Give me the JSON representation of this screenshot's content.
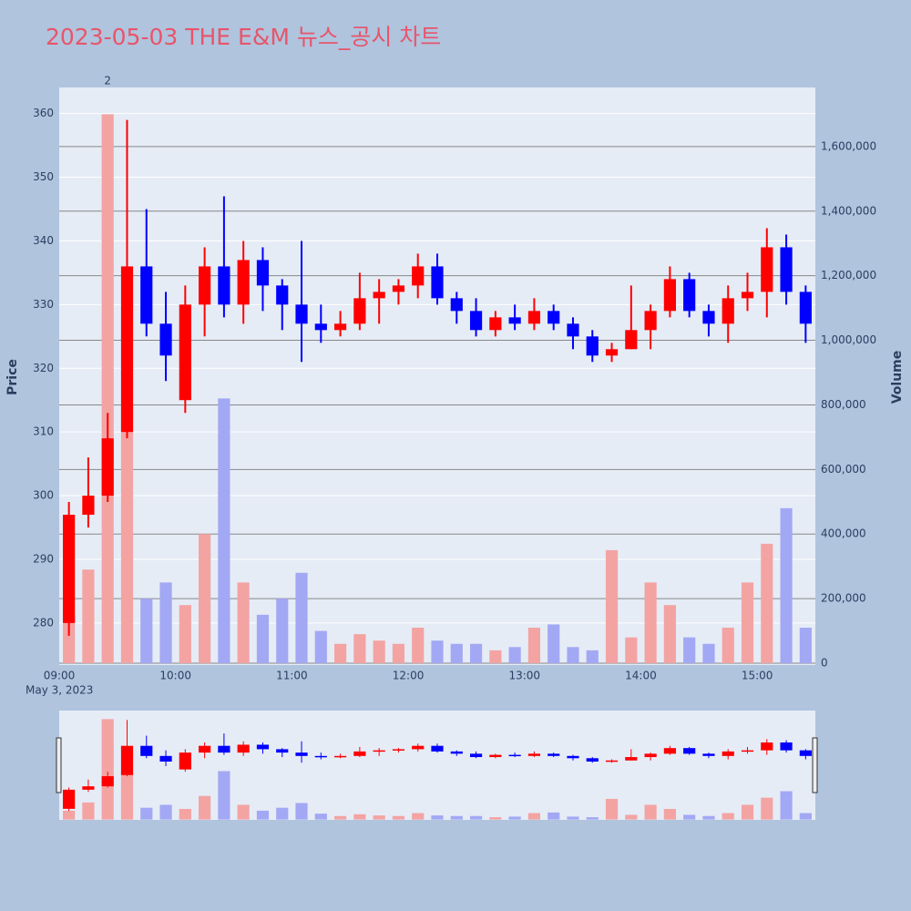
{
  "chart_data": {
    "type": "candlestick",
    "title": "2023-05-03 THE E&M 뉴스_공시 차트",
    "y_label": "Price",
    "y2_label": "Volume",
    "x_date_label": "May 3, 2023",
    "increasing_color": "#ff0000",
    "decreasing_color": "#0000ff",
    "volume_increasing_color": "#f4a3a3",
    "volume_decreasing_color": "#a3a8f4",
    "x": [
      "09:00",
      "09:10",
      "09:20",
      "09:30",
      "09:40",
      "09:50",
      "10:00",
      "10:10",
      "10:20",
      "10:30",
      "10:40",
      "10:50",
      "11:00",
      "11:10",
      "11:20",
      "11:30",
      "11:40",
      "11:50",
      "12:00",
      "12:10",
      "12:20",
      "12:30",
      "12:40",
      "12:50",
      "13:00",
      "13:10",
      "13:20",
      "13:30",
      "13:40",
      "13:50",
      "14:00",
      "14:10",
      "14:20",
      "14:30",
      "14:40",
      "14:50",
      "15:00",
      "15:10",
      "15:20"
    ],
    "open": [
      280,
      297,
      300,
      310,
      336,
      327,
      315,
      330,
      336,
      330,
      337,
      333,
      330,
      327,
      326,
      327,
      331,
      332,
      333,
      336,
      331,
      329,
      326,
      328,
      327,
      329,
      327,
      325,
      322,
      323,
      326,
      329,
      334,
      329,
      327,
      331,
      332,
      339,
      332
    ],
    "high": [
      299,
      306,
      313,
      359,
      345,
      332,
      333,
      339,
      347,
      340,
      339,
      334,
      340,
      330,
      329,
      335,
      334,
      334,
      338,
      338,
      332,
      331,
      329,
      330,
      331,
      330,
      328,
      326,
      324,
      333,
      330,
      336,
      335,
      330,
      333,
      335,
      342,
      341,
      333
    ],
    "low": [
      278,
      295,
      299,
      309,
      325,
      318,
      313,
      325,
      328,
      327,
      329,
      326,
      321,
      324,
      325,
      326,
      327,
      330,
      331,
      330,
      327,
      325,
      325,
      326,
      326,
      326,
      323,
      321,
      321,
      323,
      323,
      328,
      328,
      325,
      324,
      329,
      328,
      330,
      324
    ],
    "close": [
      297,
      300,
      309,
      336,
      327,
      322,
      330,
      336,
      330,
      337,
      333,
      330,
      327,
      326,
      327,
      331,
      332,
      333,
      336,
      331,
      329,
      326,
      328,
      327,
      329,
      327,
      325,
      322,
      323,
      326,
      329,
      334,
      329,
      327,
      331,
      332,
      339,
      332,
      327
    ],
    "volume": [
      150000,
      290000,
      1700000,
      800000,
      200000,
      250000,
      180000,
      400000,
      820000,
      250000,
      150000,
      200000,
      280000,
      100000,
      60000,
      90000,
      70000,
      60000,
      110000,
      70000,
      60000,
      60000,
      40000,
      50000,
      110000,
      120000,
      50000,
      40000,
      350000,
      80000,
      250000,
      180000,
      80000,
      60000,
      110000,
      250000,
      370000,
      480000,
      110000
    ],
    "annotations": [
      {
        "x": "09:20",
        "text": "2"
      }
    ],
    "xlim": [
      "09:00",
      "15:30"
    ],
    "xticks": [
      "09:00",
      "10:00",
      "11:00",
      "12:00",
      "13:00",
      "14:00",
      "15:00"
    ],
    "ylim": [
      273.4,
      364.1
    ],
    "yticks": [
      280,
      290,
      300,
      310,
      320,
      330,
      340,
      350,
      360
    ],
    "y2lim": [
      -5600,
      1783000
    ],
    "y2ticks": [
      0,
      {
        "value": 200000,
        "label": "200,000"
      },
      {
        "value": 400000,
        "label": "400,000"
      },
      {
        "value": 600000,
        "label": "600,000"
      },
      {
        "value": 800000,
        "label": "800,000"
      },
      {
        "value": 1000000,
        "label": "1,000,000"
      },
      {
        "value": 1200000,
        "label": "1,200,000"
      },
      {
        "value": 1400000,
        "label": "1,400,000"
      },
      {
        "value": 1600000,
        "label": "1,600,000"
      }
    ],
    "grid": true,
    "range_slider": true
  }
}
